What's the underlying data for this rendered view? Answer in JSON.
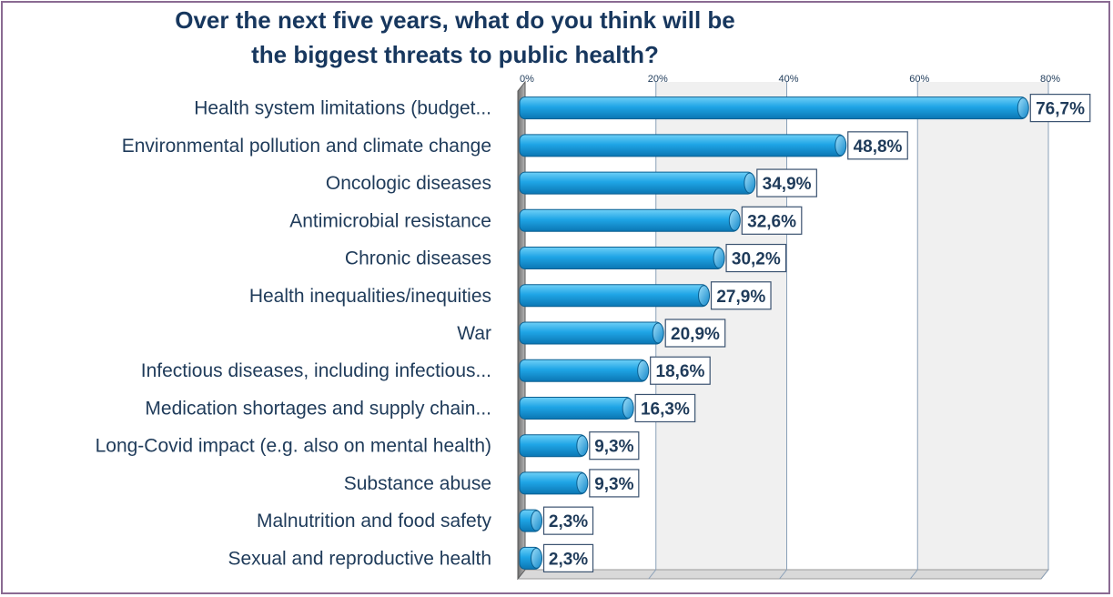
{
  "chart_data": {
    "type": "bar",
    "orientation": "horizontal",
    "title_lines": [
      "Over the next five years, what do you think will be",
      "the biggest threats to public health?"
    ],
    "categories": [
      "Health system limitations (budget...",
      "Environmental pollution and climate change",
      "Oncologic diseases",
      "Antimicrobial resistance",
      "Chronic diseases",
      "Health inequalities/inequities",
      "War",
      "Infectious diseases, including infectious...",
      "Medication shortages and supply chain...",
      "Long-Covid impact (e.g. also on mental health)",
      "Substance abuse",
      "Malnutrition and food safety",
      "Sexual and reproductive health"
    ],
    "values": [
      76.7,
      48.8,
      34.9,
      32.6,
      30.2,
      27.9,
      20.9,
      18.6,
      16.3,
      9.3,
      9.3,
      2.3,
      2.3
    ],
    "data_labels": [
      "76,7%",
      "48,8%",
      "34,9%",
      "32,6%",
      "30,2%",
      "27,9%",
      "20,9%",
      "18,6%",
      "16,3%",
      "9,3%",
      "9,3%",
      "2,3%",
      "2,3%"
    ],
    "x_ticks": [
      0,
      20,
      40,
      60,
      80
    ],
    "x_tick_labels": [
      "0%",
      "20%",
      "40%",
      "60%",
      "80%"
    ],
    "xlim": [
      0,
      80
    ],
    "grid": true,
    "colors": {
      "bar": "#1fa5e6",
      "bar_dark": "#0b76b3",
      "grid_band": "#f0f0f0",
      "title": "#17375e",
      "text": "#1f3b5a",
      "frame": "#8a6a92"
    }
  }
}
